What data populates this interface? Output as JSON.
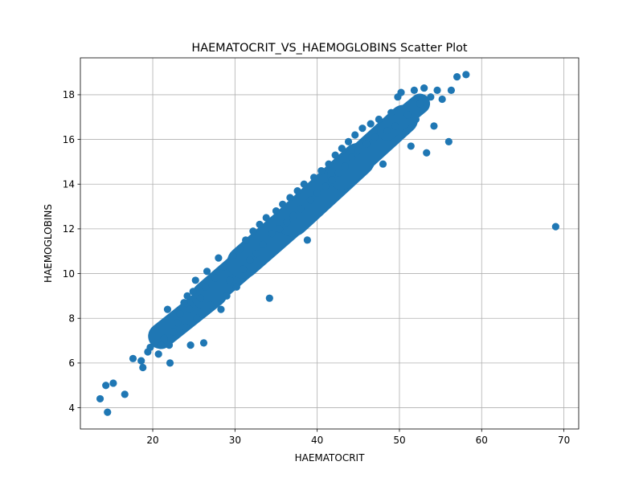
{
  "chart_data": {
    "type": "scatter",
    "title": "HAEMATOCRIT_VS_HAEMOGLOBINS Scatter Plot",
    "xlabel": "HAEMATOCRIT",
    "ylabel": "HAEMOGLOBINS",
    "xlim": [
      11.2,
      71.8
    ],
    "ylim": [
      3.05,
      19.65
    ],
    "xticks": [
      20,
      30,
      40,
      50,
      60,
      70
    ],
    "yticks": [
      4,
      6,
      8,
      10,
      12,
      14,
      16,
      18
    ],
    "grid": true,
    "marker_color": "#1f77b4",
    "series": [
      {
        "points_note": "dense main cloud approximated by representative points",
        "points": [
          [
            13.6,
            4.4
          ],
          [
            14.3,
            5.0
          ],
          [
            14.5,
            3.8
          ],
          [
            15.2,
            5.1
          ],
          [
            16.6,
            4.6
          ],
          [
            17.6,
            6.2
          ],
          [
            18.6,
            6.1
          ],
          [
            18.8,
            5.8
          ],
          [
            19.4,
            6.5
          ],
          [
            19.7,
            6.7
          ],
          [
            20.7,
            6.4
          ],
          [
            21.0,
            6.8
          ],
          [
            21.4,
            7.1
          ],
          [
            21.8,
            8.4
          ],
          [
            22.0,
            6.8
          ],
          [
            22.1,
            6.0
          ],
          [
            22.5,
            7.4
          ],
          [
            23.0,
            7.8
          ],
          [
            23.3,
            8.2
          ],
          [
            23.8,
            8.7
          ],
          [
            24.0,
            7.6
          ],
          [
            24.2,
            9.0
          ],
          [
            24.5,
            8.4
          ],
          [
            24.6,
            6.8
          ],
          [
            24.9,
            9.2
          ],
          [
            25.2,
            9.7
          ],
          [
            25.4,
            8.0
          ],
          [
            25.8,
            8.9
          ],
          [
            26.2,
            6.9
          ],
          [
            26.4,
            9.4
          ],
          [
            26.6,
            10.1
          ],
          [
            27.0,
            8.6
          ],
          [
            27.6,
            9.8
          ],
          [
            28.0,
            10.7
          ],
          [
            28.3,
            8.4
          ],
          [
            28.6,
            10.3
          ],
          [
            29.0,
            9.0
          ],
          [
            29.4,
            9.7
          ],
          [
            29.8,
            10.8
          ],
          [
            30.2,
            9.4
          ],
          [
            30.6,
            11.1
          ],
          [
            31.0,
            10.2
          ],
          [
            31.3,
            11.5
          ],
          [
            31.8,
            10.6
          ],
          [
            32.2,
            11.9
          ],
          [
            32.6,
            10.9
          ],
          [
            33.0,
            12.2
          ],
          [
            33.4,
            11.3
          ],
          [
            33.8,
            12.5
          ],
          [
            34.2,
            8.9
          ],
          [
            34.5,
            11.8
          ],
          [
            35.0,
            12.8
          ],
          [
            35.4,
            12.0
          ],
          [
            35.8,
            13.1
          ],
          [
            36.3,
            12.3
          ],
          [
            36.7,
            13.4
          ],
          [
            37.1,
            12.6
          ],
          [
            37.6,
            13.7
          ],
          [
            38.0,
            12.9
          ],
          [
            38.4,
            14.0
          ],
          [
            38.8,
            11.5
          ],
          [
            39.2,
            13.3
          ],
          [
            39.6,
            14.3
          ],
          [
            40.0,
            13.6
          ],
          [
            40.5,
            14.6
          ],
          [
            41.0,
            13.9
          ],
          [
            41.4,
            14.9
          ],
          [
            41.8,
            14.2
          ],
          [
            42.2,
            15.3
          ],
          [
            42.6,
            14.5
          ],
          [
            43.0,
            15.6
          ],
          [
            43.4,
            14.8
          ],
          [
            43.8,
            15.9
          ],
          [
            44.2,
            15.2
          ],
          [
            44.6,
            16.2
          ],
          [
            45.0,
            15.5
          ],
          [
            45.5,
            16.5
          ],
          [
            46.0,
            15.8
          ],
          [
            46.5,
            16.7
          ],
          [
            47.0,
            16.1
          ],
          [
            47.5,
            16.9
          ],
          [
            48.0,
            14.9
          ],
          [
            48.5,
            16.4
          ],
          [
            49.0,
            17.2
          ],
          [
            49.5,
            16.6
          ],
          [
            49.8,
            17.9
          ],
          [
            50.2,
            18.1
          ],
          [
            51.0,
            17.1
          ],
          [
            51.4,
            15.7
          ],
          [
            51.8,
            18.2
          ],
          [
            52.0,
            16.9
          ],
          [
            52.5,
            17.6
          ],
          [
            53.0,
            18.3
          ],
          [
            53.3,
            15.4
          ],
          [
            53.8,
            17.9
          ],
          [
            54.2,
            16.6
          ],
          [
            54.6,
            18.2
          ],
          [
            55.2,
            17.8
          ],
          [
            56.0,
            15.9
          ],
          [
            56.3,
            18.2
          ],
          [
            57.0,
            18.8
          ],
          [
            58.1,
            18.9
          ],
          [
            69.0,
            12.1
          ]
        ]
      }
    ],
    "cloud_segments": [
      {
        "x1": 21.0,
        "y1": 7.2,
        "x2": 27.5,
        "y2": 9.1,
        "width": 1.15
      },
      {
        "x1": 26.5,
        "y1": 9.0,
        "x2": 32.5,
        "y2": 10.9,
        "width": 1.3
      },
      {
        "x1": 31.0,
        "y1": 10.5,
        "x2": 38.5,
        "y2": 12.9,
        "width": 1.45
      },
      {
        "x1": 37.0,
        "y1": 12.4,
        "x2": 45.0,
        "y2": 15.1,
        "width": 1.5
      },
      {
        "x1": 43.0,
        "y1": 14.4,
        "x2": 50.5,
        "y2": 16.9,
        "width": 1.3
      },
      {
        "x1": 48.5,
        "y1": 16.4,
        "x2": 52.5,
        "y2": 17.6,
        "width": 0.9
      }
    ]
  }
}
